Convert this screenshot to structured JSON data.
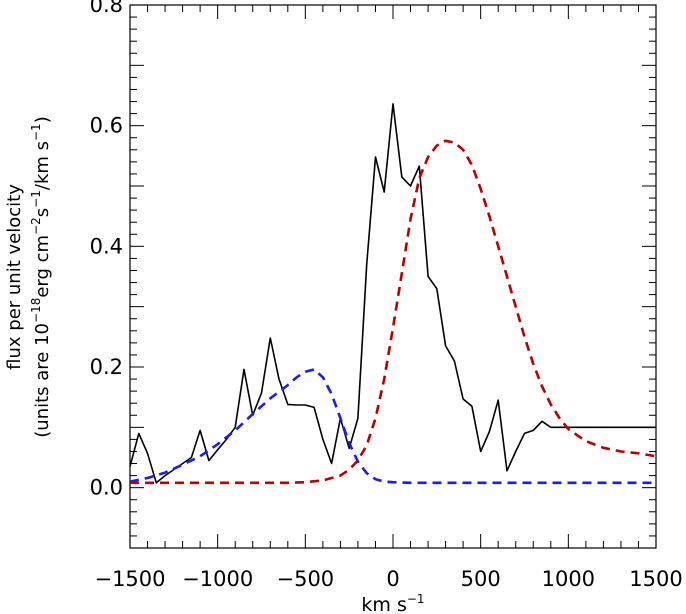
{
  "chart_data": {
    "type": "line",
    "title": "",
    "xlabel": "km s",
    "xlabel_sup": "−1",
    "ylabel_line1": "flux per unit velocity",
    "ylabel_line2": {
      "a": "(units are 10",
      "b": "−18",
      "c": "erg cm",
      "d": "−2",
      "e": "s",
      "f": "−1",
      "g": "/km s",
      "h": "−1",
      "i": ")"
    },
    "xlim": [
      -1500,
      1500
    ],
    "ylim": [
      -0.1,
      0.8
    ],
    "xticks": [
      -1500,
      -1000,
      -500,
      0,
      500,
      1000,
      1500
    ],
    "xtick_labels": [
      "−1500",
      "−1000",
      "−500",
      "0",
      "500",
      "1000",
      "1500"
    ],
    "yticks": [
      0.0,
      0.2,
      0.4,
      0.6,
      0.8
    ],
    "ytick_labels": [
      "0.0",
      "0.2",
      "0.4",
      "0.6",
      "0.8"
    ],
    "grid": false,
    "series": [
      {
        "style": "solid",
        "color": "#000000",
        "x": [
          -1500,
          -1450,
          -1400,
          -1350,
          -1300,
          -1250,
          -1200,
          -1150,
          -1100,
          -1050,
          -1000,
          -950,
          -900,
          -850,
          -800,
          -750,
          -700,
          -650,
          -600,
          -550,
          -500,
          -450,
          -400,
          -350,
          -300,
          -250,
          -200,
          -150,
          -100,
          -50,
          0,
          50,
          100,
          150,
          200,
          250,
          300,
          350,
          400,
          450,
          500,
          550,
          600,
          650,
          700,
          750,
          800,
          850,
          900,
          950,
          1000,
          1050,
          1100,
          1150,
          1200,
          1250,
          1300,
          1350,
          1400,
          1450,
          1500
        ],
        "y": [
          0.035,
          0.09,
          0.057,
          0.008,
          0.02,
          0.03,
          0.04,
          0.05,
          0.095,
          0.045,
          0.063,
          0.08,
          0.1,
          0.196,
          0.12,
          0.157,
          0.248,
          0.18,
          0.138,
          0.137,
          0.137,
          0.133,
          0.08,
          0.04,
          0.115,
          0.065,
          0.115,
          0.37,
          0.548,
          0.49,
          0.636,
          0.515,
          0.5,
          0.533,
          0.35,
          0.33,
          0.235,
          0.21,
          0.147,
          0.135,
          0.06,
          0.093,
          0.145,
          0.028,
          0.06,
          0.09,
          0.095,
          0.11,
          0.1,
          0.1,
          0.1,
          0.1,
          0.1,
          0.1,
          0.1,
          0.1,
          0.1,
          0.1,
          0.1,
          0.1,
          0.1
        ]
      },
      {
        "style": "dashed",
        "color": "#1a1aff",
        "x": [
          -1500,
          -1400,
          -1300,
          -1200,
          -1100,
          -1000,
          -900,
          -800,
          -700,
          -600,
          -550,
          -500,
          -450,
          -400,
          -350,
          -300,
          -250,
          -200,
          -150,
          -100,
          -50,
          0,
          100,
          200,
          400,
          600,
          800,
          1000,
          1200,
          1400,
          1500
        ],
        "y": [
          0.01,
          0.016,
          0.025,
          0.038,
          0.052,
          0.072,
          0.095,
          0.122,
          0.148,
          0.17,
          0.183,
          0.192,
          0.196,
          0.183,
          0.155,
          0.115,
          0.074,
          0.043,
          0.024,
          0.014,
          0.01,
          0.009,
          0.008,
          0.008,
          0.008,
          0.008,
          0.008,
          0.008,
          0.008,
          0.008,
          0.008
        ]
      },
      {
        "style": "dashed",
        "color": "#b80000",
        "x": [
          -1500,
          -1400,
          -1200,
          -1000,
          -800,
          -600,
          -500,
          -400,
          -300,
          -250,
          -200,
          -150,
          -100,
          -50,
          0,
          50,
          100,
          150,
          200,
          250,
          300,
          350,
          400,
          450,
          500,
          550,
          600,
          650,
          700,
          750,
          800,
          850,
          900,
          950,
          1000,
          1100,
          1200,
          1300,
          1400,
          1500
        ],
        "y": [
          0.008,
          0.008,
          0.008,
          0.008,
          0.008,
          0.008,
          0.009,
          0.012,
          0.02,
          0.03,
          0.045,
          0.07,
          0.115,
          0.18,
          0.265,
          0.355,
          0.445,
          0.513,
          0.548,
          0.567,
          0.575,
          0.572,
          0.56,
          0.535,
          0.495,
          0.45,
          0.4,
          0.35,
          0.3,
          0.25,
          0.205,
          0.168,
          0.138,
          0.115,
          0.097,
          0.077,
          0.066,
          0.06,
          0.057,
          0.052
        ]
      }
    ]
  }
}
